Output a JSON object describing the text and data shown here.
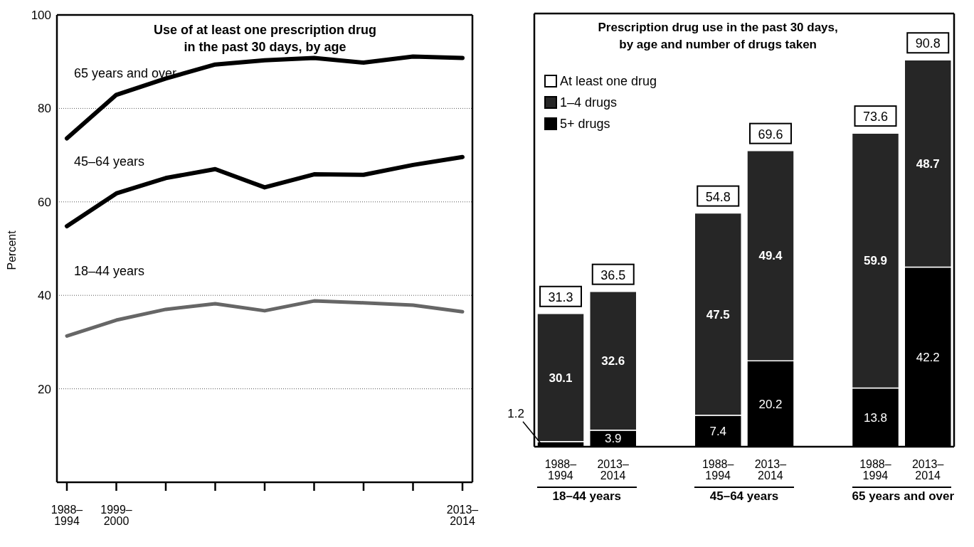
{
  "chart_data": [
    {
      "type": "line",
      "title": "Use of at least one prescription drug\nin the past 30 days, by age",
      "ylabel": "Percent",
      "categories": [
        "1988–\n1994",
        "1999–\n2000",
        null,
        null,
        null,
        null,
        null,
        null,
        "2013–\n2014"
      ],
      "ylim": [
        0,
        100
      ],
      "yticks": [
        20,
        40,
        60,
        80,
        100
      ],
      "grid": "y",
      "series": [
        {
          "name": "65 years and over",
          "color": "#000000",
          "values": [
            73.6,
            82.9,
            86.4,
            89.4,
            90.3,
            90.8,
            89.8,
            91.1,
            90.8
          ]
        },
        {
          "name": "45–64 years",
          "color": "#000000",
          "values": [
            54.8,
            61.8,
            65.1,
            67.0,
            63.1,
            65.9,
            65.8,
            67.9,
            69.6
          ]
        },
        {
          "name": "18–44 years",
          "color": "#666666",
          "values": [
            31.3,
            34.7,
            37.0,
            38.2,
            36.7,
            38.8,
            38.4,
            37.9,
            36.5
          ]
        }
      ]
    },
    {
      "type": "bar",
      "stacked": true,
      "title": "Prescription drug use in the past 30 days,\nby age and number of drugs taken",
      "categories": [
        "1988–\n1994",
        "2013–\n2014",
        null,
        "1988–\n1994",
        "2013–\n2014",
        null,
        "1988–\n1994",
        "2013–\n2014"
      ],
      "legend": "top left",
      "legend_title": "At least one drug",
      "data_labels": true,
      "series": [
        {
          "name": "5+ drugs",
          "color": "#000000",
          "values": [
            1.2,
            3.9,
            null,
            7.4,
            20.2,
            null,
            13.8,
            42.2
          ]
        },
        {
          "name": "1–4 drugs",
          "color": "#262626",
          "values": [
            30.1,
            32.6,
            null,
            47.5,
            49.4,
            null,
            59.9,
            48.7
          ]
        }
      ],
      "totals": [
        "31.3",
        "36.5",
        null,
        "54.8",
        "69.6",
        null,
        "73.6",
        "90.8"
      ],
      "annotations": [
        "18–44 years",
        "45–64 years",
        "65 years and over"
      ]
    }
  ]
}
